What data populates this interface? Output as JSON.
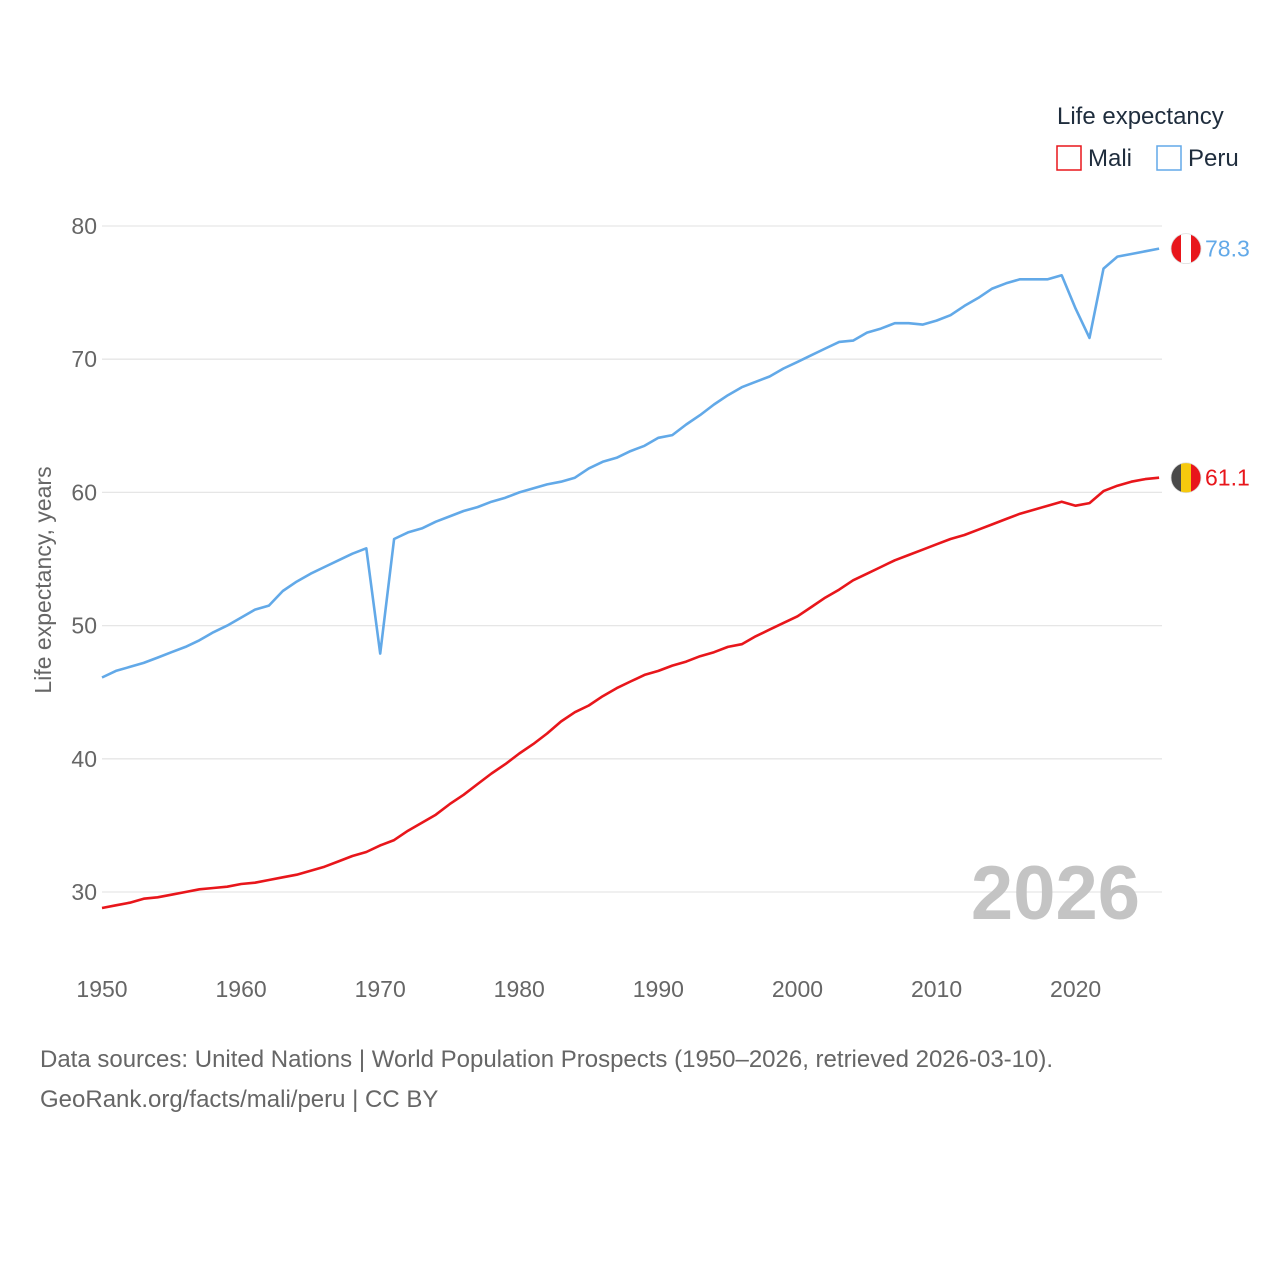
{
  "chart_data": {
    "type": "line",
    "ylabel": "Life expectancy, years",
    "xlabel": "",
    "xlim": [
      1950,
      2026
    ],
    "ylim": [
      25,
      82
    ],
    "xticks": [
      1950,
      1960,
      1970,
      1980,
      1990,
      2000,
      2010,
      2020
    ],
    "yticks": [
      30,
      40,
      50,
      60,
      70,
      80
    ],
    "legend_title": "Life expectancy",
    "legend_position": "top-right",
    "year_watermark": "2026",
    "x": [
      1950,
      1951,
      1952,
      1953,
      1954,
      1955,
      1956,
      1957,
      1958,
      1959,
      1960,
      1961,
      1962,
      1963,
      1964,
      1965,
      1966,
      1967,
      1968,
      1969,
      1970,
      1971,
      1972,
      1973,
      1974,
      1975,
      1976,
      1977,
      1978,
      1979,
      1980,
      1981,
      1982,
      1983,
      1984,
      1985,
      1986,
      1987,
      1988,
      1989,
      1990,
      1991,
      1992,
      1993,
      1994,
      1995,
      1996,
      1997,
      1998,
      1999,
      2000,
      2001,
      2002,
      2003,
      2004,
      2005,
      2006,
      2007,
      2008,
      2009,
      2010,
      2011,
      2012,
      2013,
      2014,
      2015,
      2016,
      2017,
      2018,
      2019,
      2020,
      2021,
      2022,
      2023,
      2024,
      2025,
      2026
    ],
    "series": [
      {
        "name": "Mali",
        "color": "#e8161b",
        "flag": "mali-flag",
        "end_label": "61.1",
        "values": [
          28.8,
          29.0,
          29.2,
          29.5,
          29.6,
          29.8,
          30.0,
          30.2,
          30.3,
          30.4,
          30.6,
          30.7,
          30.9,
          31.1,
          31.3,
          31.6,
          31.9,
          32.3,
          32.7,
          33.0,
          33.5,
          33.9,
          34.6,
          35.2,
          35.8,
          36.6,
          37.3,
          38.1,
          38.9,
          39.6,
          40.4,
          41.1,
          41.9,
          42.8,
          43.5,
          44.0,
          44.7,
          45.3,
          45.8,
          46.3,
          46.6,
          47.0,
          47.3,
          47.7,
          48.0,
          48.4,
          48.6,
          49.2,
          49.7,
          50.2,
          50.7,
          51.4,
          52.1,
          52.7,
          53.4,
          53.9,
          54.4,
          54.9,
          55.3,
          55.7,
          56.1,
          56.5,
          56.8,
          57.2,
          57.6,
          58.0,
          58.4,
          58.7,
          59.0,
          59.3,
          59.0,
          59.2,
          60.1,
          60.5,
          60.8,
          61.0,
          61.1
        ]
      },
      {
        "name": "Peru",
        "color": "#62a9e8",
        "flag": "peru-flag",
        "end_label": "78.3",
        "values": [
          46.1,
          46.6,
          46.9,
          47.2,
          47.6,
          48.0,
          48.4,
          48.9,
          49.5,
          50.0,
          50.6,
          51.2,
          51.5,
          52.6,
          53.3,
          53.9,
          54.4,
          54.9,
          55.4,
          55.8,
          47.9,
          56.5,
          57.0,
          57.3,
          57.8,
          58.2,
          58.6,
          58.9,
          59.3,
          59.6,
          60.0,
          60.3,
          60.6,
          60.8,
          61.1,
          61.8,
          62.3,
          62.6,
          63.1,
          63.5,
          64.1,
          64.3,
          65.1,
          65.8,
          66.6,
          67.3,
          67.9,
          68.3,
          68.7,
          69.3,
          69.8,
          70.3,
          70.8,
          71.3,
          71.4,
          72.0,
          72.3,
          72.7,
          72.7,
          72.6,
          72.9,
          73.3,
          74.0,
          74.6,
          75.3,
          75.7,
          76.0,
          76.0,
          76.0,
          76.3,
          73.8,
          71.6,
          76.8,
          77.7,
          77.9,
          78.1,
          78.3
        ]
      }
    ]
  },
  "footer": {
    "line1": "Data sources: United Nations | World Population Prospects (1950–2026, retrieved 2026-03-10).",
    "line2": "GeoRank.org/facts/mali/peru | CC BY"
  }
}
